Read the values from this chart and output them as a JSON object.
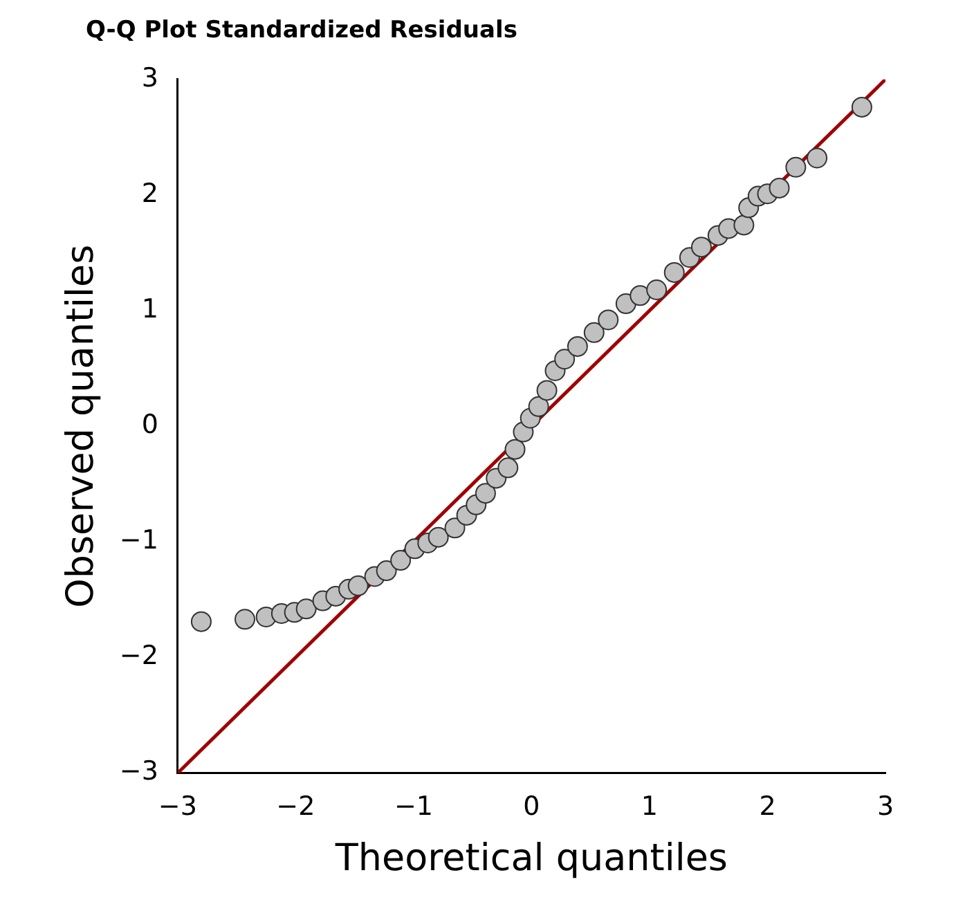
{
  "chart_data": {
    "type": "scatter",
    "title": "Q-Q Plot Standardized Residuals",
    "xlabel": "Theoretical quantiles",
    "ylabel": "Observed quantiles",
    "xlim": [
      -3,
      3
    ],
    "ylim": [
      -3,
      3
    ],
    "xticks": [
      -3,
      -2,
      -1,
      0,
      1,
      2,
      3
    ],
    "yticks": [
      -3,
      -2,
      -1,
      0,
      1,
      2,
      3
    ],
    "grid": false,
    "legend": false,
    "marker": "circle",
    "series": [
      {
        "color": "#c0c0c0",
        "x": [
          -2.8,
          -2.43,
          -2.25,
          -2.12,
          -2.01,
          -1.91,
          -1.77,
          -1.66,
          -1.55,
          -1.47,
          -1.33,
          -1.23,
          -1.11,
          -0.99,
          -0.88,
          -0.79,
          -0.65,
          -0.55,
          -0.47,
          -0.39,
          -0.3,
          -0.2,
          -0.14,
          -0.07,
          -0.01,
          0.06,
          0.13,
          0.2,
          0.28,
          0.39,
          0.53,
          0.65,
          0.8,
          0.92,
          1.06,
          1.21,
          1.34,
          1.44,
          1.58,
          1.67,
          1.8,
          1.84,
          1.92,
          2.0,
          2.1,
          2.24,
          2.42,
          2.8
        ],
        "values": [
          -1.69,
          -1.67,
          -1.65,
          -1.62,
          -1.61,
          -1.58,
          -1.51,
          -1.47,
          -1.41,
          -1.38,
          -1.3,
          -1.25,
          -1.16,
          -1.06,
          -1.01,
          -0.96,
          -0.88,
          -0.77,
          -0.68,
          -0.58,
          -0.45,
          -0.36,
          -0.2,
          -0.05,
          0.07,
          0.17,
          0.31,
          0.48,
          0.58,
          0.69,
          0.81,
          0.92,
          1.06,
          1.13,
          1.18,
          1.33,
          1.46,
          1.55,
          1.65,
          1.71,
          1.74,
          1.89,
          1.99,
          2.01,
          2.06,
          2.24,
          2.32,
          2.76
        ]
      },
      {
        "type": "line",
        "color": "#a00000",
        "line_style": "solid",
        "marker": "none",
        "x": [
          -3,
          3
        ],
        "values": [
          -3,
          3
        ]
      }
    ]
  }
}
